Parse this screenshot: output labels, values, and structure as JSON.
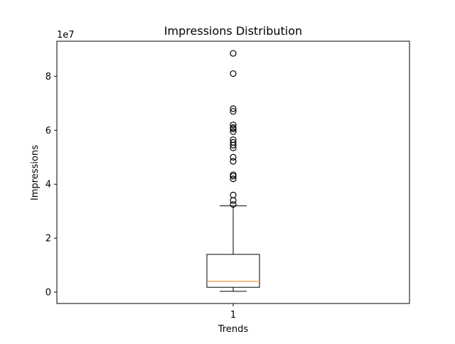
{
  "chart_data": {
    "type": "box",
    "title": "Impressions Distribution",
    "xlabel": "Trends",
    "ylabel": "Impressions",
    "y_offset_label": "1e7",
    "categories": [
      "1"
    ],
    "y_ticks": [
      0,
      20000000,
      40000000,
      60000000,
      80000000
    ],
    "y_tick_labels": [
      "0",
      "2",
      "4",
      "6",
      "8"
    ],
    "ylim": [
      -4200000,
      93000000
    ],
    "grid": false,
    "boxes": [
      {
        "category": "1",
        "whisker_low": 300000,
        "q1": 1800000,
        "median": 4000000,
        "q3": 14000000,
        "whisker_high": 32000000,
        "outliers": [
          32500000,
          34000000,
          36000000,
          42000000,
          43000000,
          43500000,
          48500000,
          50000000,
          53500000,
          54500000,
          55500000,
          56500000,
          59500000,
          60500000,
          61000000,
          62000000,
          67000000,
          68000000,
          81000000,
          88500000
        ]
      }
    ],
    "colors": {
      "box": "#000000",
      "median": "#ff7f0e",
      "outlier": "#000000"
    }
  }
}
